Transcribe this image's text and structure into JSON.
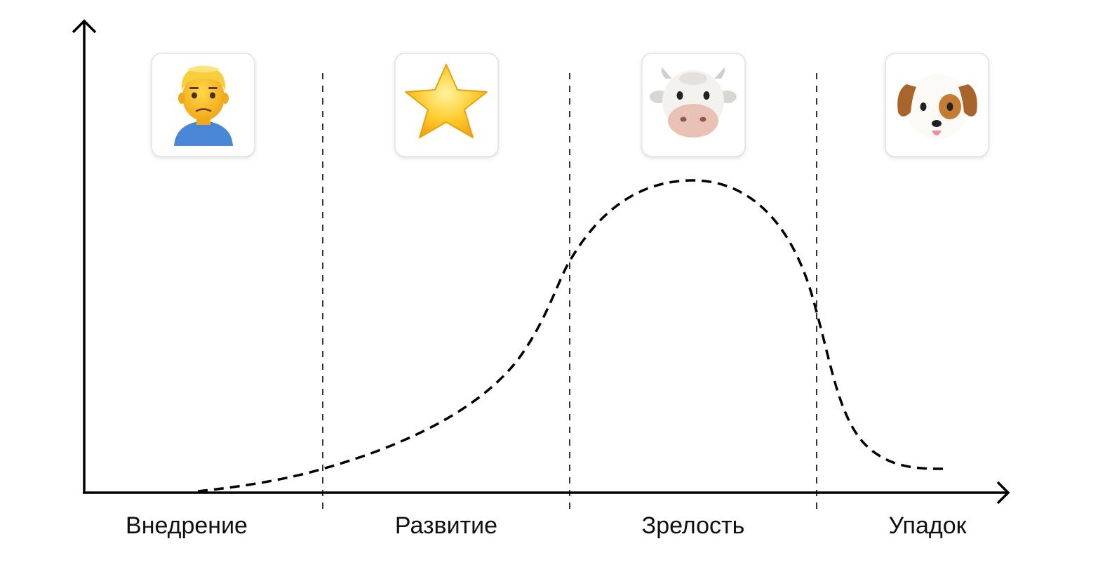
{
  "stages": [
    {
      "label": "Внедрение",
      "icon": "frowning-man-icon"
    },
    {
      "label": "Развитие",
      "icon": "star-icon"
    },
    {
      "label": "Зрелость",
      "icon": "cow-face-icon"
    },
    {
      "label": "Упадок",
      "icon": "dog-face-icon"
    }
  ],
  "colors": {
    "axis": "#000000",
    "curve": "#000000",
    "divider": "#000000",
    "card_border": "#dddddd",
    "background": "#ffffff"
  }
}
